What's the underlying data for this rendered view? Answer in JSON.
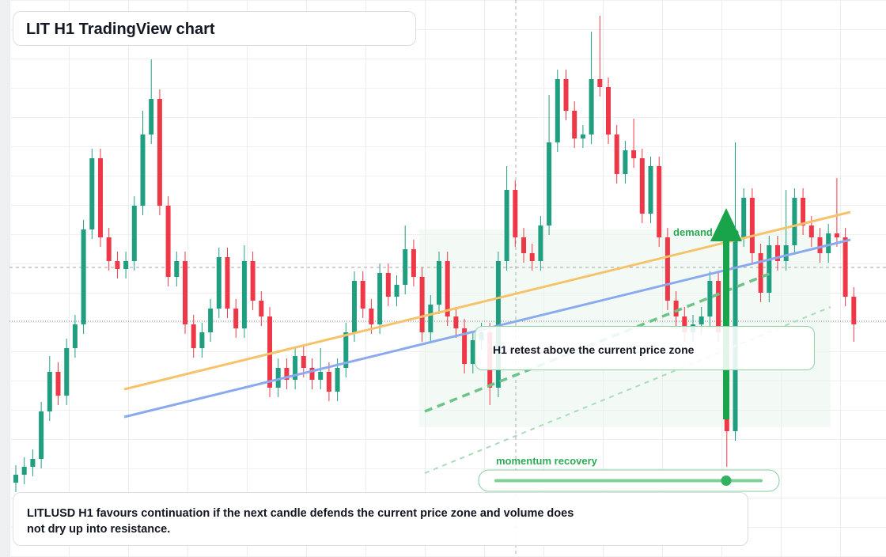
{
  "chart_data": {
    "type": "candlestick",
    "title": "LIT H1 TradingView chart",
    "up_color": "#1f9e80",
    "down_color": "#ee3847",
    "ylim": [
      0,
      704
    ],
    "open": [
      94,
      104,
      114,
      124,
      184,
      234,
      204,
      264,
      294,
      414,
      504,
      404,
      374,
      364,
      374,
      444,
      534,
      579,
      444,
      354,
      374,
      294,
      264,
      284,
      314,
      379,
      314,
      289,
      374,
      324,
      304,
      214,
      239,
      224,
      254,
      239,
      224,
      234,
      209,
      239,
      284,
      349,
      314,
      294,
      359,
      329,
      344,
      389,
      354,
      284,
      319,
      374,
      304,
      289,
      244,
      274,
      284,
      214,
      374,
      464,
      404,
      384,
      374,
      419,
      524,
      604,
      564,
      529,
      534,
      604,
      594,
      534,
      484,
      514,
      504,
      434,
      494,
      404,
      324,
      304,
      284,
      294,
      304,
      349,
      284,
      159,
      404,
      454,
      384,
      334,
      394,
      374,
      394,
      454,
      419,
      404,
      384,
      409,
      404,
      329
    ],
    "high": [
      116,
      126,
      136,
      196,
      254,
      246,
      276,
      306,
      426,
      516,
      516,
      416,
      386,
      386,
      456,
      564,
      629,
      591,
      456,
      386,
      386,
      306,
      296,
      326,
      391,
      391,
      326,
      394,
      386,
      336,
      316,
      251,
      251,
      266,
      266,
      251,
      264,
      246,
      251,
      296,
      361,
      361,
      326,
      371,
      371,
      356,
      419,
      401,
      366,
      331,
      386,
      386,
      316,
      301,
      286,
      296,
      296,
      386,
      494,
      476,
      416,
      396,
      431,
      584,
      616,
      616,
      576,
      546,
      664,
      684,
      606,
      546,
      526,
      554,
      516,
      506,
      506,
      416,
      336,
      316,
      306,
      316,
      361,
      361,
      296,
      524,
      466,
      466,
      396,
      406,
      406,
      464,
      466,
      466,
      431,
      416,
      421,
      479,
      416,
      341
    ],
    "low": [
      82,
      92,
      102,
      112,
      172,
      192,
      192,
      252,
      282,
      402,
      392,
      362,
      352,
      352,
      362,
      432,
      522,
      432,
      342,
      342,
      282,
      252,
      252,
      272,
      302,
      302,
      277,
      277,
      312,
      292,
      202,
      202,
      212,
      212,
      227,
      212,
      212,
      197,
      197,
      227,
      272,
      302,
      282,
      282,
      317,
      317,
      332,
      342,
      272,
      272,
      307,
      292,
      277,
      232,
      232,
      262,
      192,
      202,
      362,
      392,
      372,
      362,
      362,
      407,
      512,
      552,
      517,
      517,
      522,
      582,
      522,
      472,
      472,
      492,
      422,
      422,
      392,
      312,
      292,
      272,
      272,
      282,
      292,
      272,
      114,
      147,
      392,
      372,
      322,
      322,
      362,
      362,
      382,
      407,
      392,
      372,
      372,
      392,
      317,
      272
    ],
    "close": [
      104,
      114,
      124,
      184,
      234,
      204,
      264,
      294,
      414,
      504,
      404,
      374,
      364,
      374,
      444,
      534,
      579,
      444,
      354,
      374,
      294,
      264,
      284,
      314,
      379,
      314,
      289,
      374,
      324,
      304,
      214,
      239,
      224,
      254,
      239,
      224,
      234,
      209,
      239,
      284,
      349,
      314,
      294,
      359,
      329,
      344,
      389,
      354,
      284,
      319,
      374,
      304,
      289,
      244,
      274,
      284,
      214,
      374,
      464,
      404,
      384,
      374,
      419,
      524,
      604,
      564,
      529,
      534,
      604,
      594,
      534,
      484,
      514,
      504,
      434,
      494,
      404,
      324,
      304,
      284,
      294,
      304,
      349,
      284,
      159,
      404,
      454,
      384,
      334,
      394,
      374,
      394,
      454,
      419,
      404,
      384,
      409,
      404,
      329,
      294
    ],
    "annotations": {
      "zone": "demand zone",
      "callout": "H1 retest above the current price zone",
      "momentum": "momentum recovery",
      "note": "LITLUSD H1 favours continuation if the next candle defends the current price zone and volume does not dry up into resistance."
    }
  }
}
